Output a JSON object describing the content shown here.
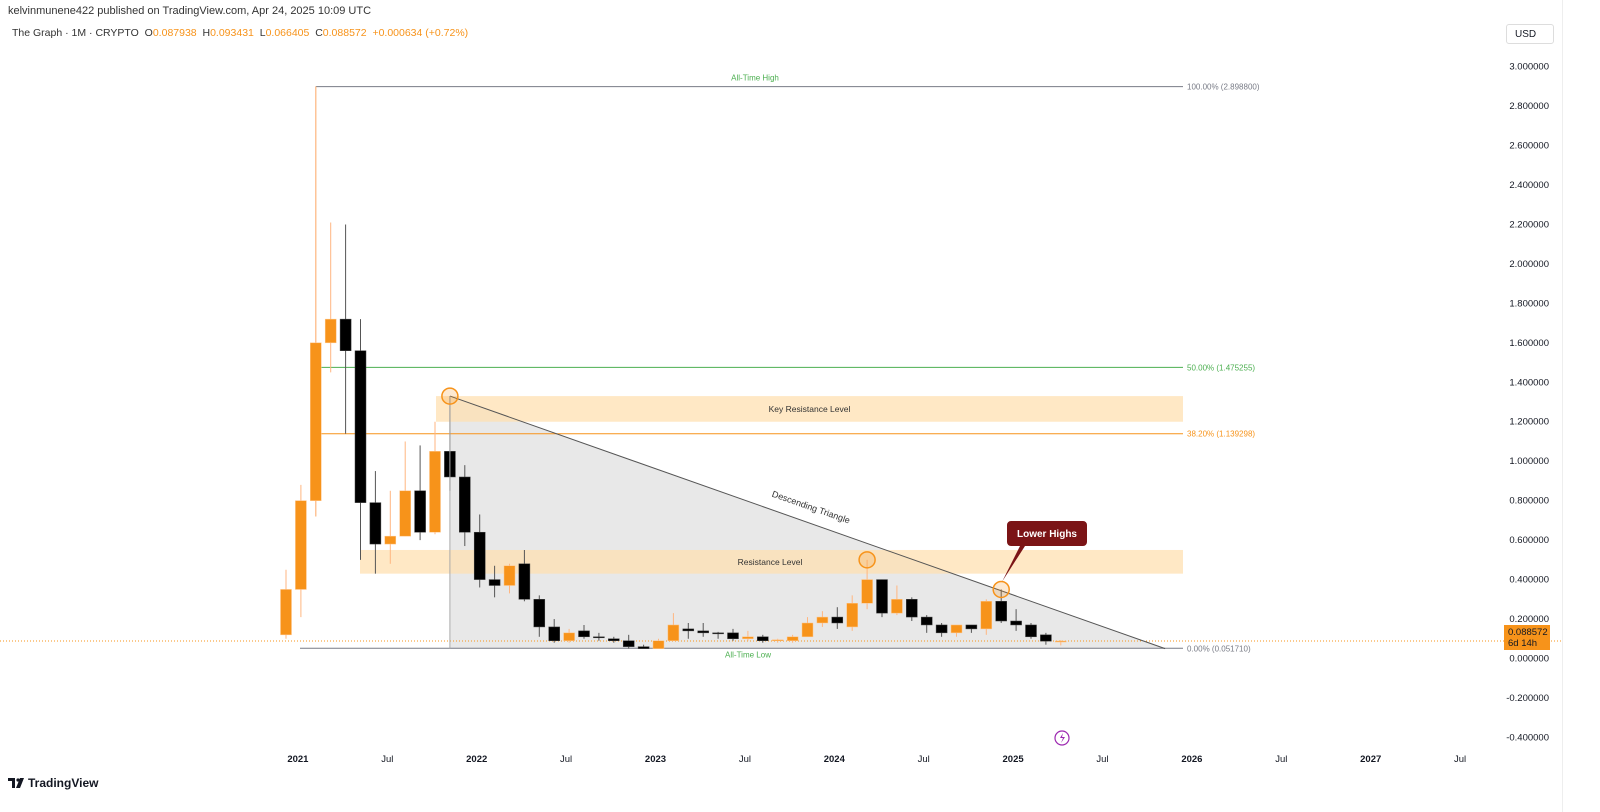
{
  "header": {
    "published": "kelvinmunene422 published on TradingView.com, Apr 24, 2025 10:09 UTC",
    "symbol": "The Graph · 1M · CRYPTO",
    "open_label": "O",
    "open": "0.087938",
    "high_label": "H",
    "high": "0.093431",
    "low_label": "L",
    "low": "0.066405",
    "close_label": "C",
    "close": "0.088572",
    "change": "+0.000634 (+0.72%)",
    "currency": "USD"
  },
  "price_tag": {
    "price": "0.088572",
    "countdown": "6d 14h"
  },
  "footer": {
    "logo": "TradingView"
  },
  "colors": {
    "up": "#f7931a",
    "down": "#000000",
    "fib_green": "#4caf50",
    "fib_orange": "#f7931a",
    "zone": "#ffe0b2",
    "callout": "#7b1416",
    "triangle": "#e6e6e6"
  },
  "chart_data": {
    "type": "candlestick",
    "interval": "1M",
    "ylim": [
      -0.45,
      3.1
    ],
    "yticks": [
      "3.000000",
      "2.800000",
      "2.600000",
      "2.400000",
      "2.200000",
      "2.000000",
      "1.800000",
      "1.600000",
      "1.400000",
      "1.200000",
      "1.000000",
      "0.800000",
      "0.600000",
      "0.400000",
      "0.200000",
      "0.000000",
      "-0.200000",
      "-0.400000"
    ],
    "ytick_values": [
      3.0,
      2.8,
      2.6,
      2.4,
      2.2,
      2.0,
      1.8,
      1.6,
      1.4,
      1.2,
      1.0,
      0.8,
      0.6,
      0.4,
      0.2,
      0.0,
      -0.2,
      -0.4
    ],
    "xticks": [
      {
        "label": "2021",
        "month": "2021-01"
      },
      {
        "label": "Jul",
        "month": "2021-07"
      },
      {
        "label": "2022",
        "month": "2022-01"
      },
      {
        "label": "Jul",
        "month": "2022-07"
      },
      {
        "label": "2023",
        "month": "2023-01"
      },
      {
        "label": "Jul",
        "month": "2023-07"
      },
      {
        "label": "2024",
        "month": "2024-01"
      },
      {
        "label": "Jul",
        "month": "2024-07"
      },
      {
        "label": "2025",
        "month": "2025-01"
      },
      {
        "label": "Jul",
        "month": "2025-07"
      },
      {
        "label": "2026",
        "month": "2026-01"
      },
      {
        "label": "Jul",
        "month": "2026-07"
      },
      {
        "label": "2027",
        "month": "2027-01"
      },
      {
        "label": "Jul",
        "month": "2027-07"
      }
    ],
    "candles": [
      {
        "t": "2020-12",
        "o": 0.12,
        "h": 0.45,
        "l": 0.1,
        "c": 0.35
      },
      {
        "t": "2021-01",
        "o": 0.35,
        "h": 0.88,
        "l": 0.21,
        "c": 0.8
      },
      {
        "t": "2021-02",
        "o": 0.8,
        "h": 2.9,
        "l": 0.72,
        "c": 1.6
      },
      {
        "t": "2021-03",
        "o": 1.6,
        "h": 2.21,
        "l": 1.45,
        "c": 1.72
      },
      {
        "t": "2021-04",
        "o": 1.72,
        "h": 2.2,
        "l": 1.14,
        "c": 1.56
      },
      {
        "t": "2021-05",
        "o": 1.56,
        "h": 1.72,
        "l": 0.5,
        "c": 0.79
      },
      {
        "t": "2021-06",
        "o": 0.79,
        "h": 0.95,
        "l": 0.43,
        "c": 0.58
      },
      {
        "t": "2021-07",
        "o": 0.58,
        "h": 0.85,
        "l": 0.48,
        "c": 0.62
      },
      {
        "t": "2021-08",
        "o": 0.62,
        "h": 1.1,
        "l": 0.62,
        "c": 0.85
      },
      {
        "t": "2021-09",
        "o": 0.85,
        "h": 1.08,
        "l": 0.6,
        "c": 0.64
      },
      {
        "t": "2021-10",
        "o": 0.64,
        "h": 1.2,
        "l": 0.63,
        "c": 1.05
      },
      {
        "t": "2021-11",
        "o": 1.05,
        "h": 1.33,
        "l": 0.85,
        "c": 0.92
      },
      {
        "t": "2021-12",
        "o": 0.92,
        "h": 0.98,
        "l": 0.57,
        "c": 0.64
      },
      {
        "t": "2022-01",
        "o": 0.64,
        "h": 0.73,
        "l": 0.36,
        "c": 0.4
      },
      {
        "t": "2022-02",
        "o": 0.4,
        "h": 0.47,
        "l": 0.31,
        "c": 0.37
      },
      {
        "t": "2022-03",
        "o": 0.37,
        "h": 0.48,
        "l": 0.33,
        "c": 0.47
      },
      {
        "t": "2022-04",
        "o": 0.48,
        "h": 0.55,
        "l": 0.29,
        "c": 0.3
      },
      {
        "t": "2022-05",
        "o": 0.3,
        "h": 0.32,
        "l": 0.11,
        "c": 0.16
      },
      {
        "t": "2022-06",
        "o": 0.16,
        "h": 0.2,
        "l": 0.08,
        "c": 0.09
      },
      {
        "t": "2022-07",
        "o": 0.09,
        "h": 0.15,
        "l": 0.08,
        "c": 0.13
      },
      {
        "t": "2022-08",
        "o": 0.14,
        "h": 0.17,
        "l": 0.1,
        "c": 0.11
      },
      {
        "t": "2022-09",
        "o": 0.11,
        "h": 0.13,
        "l": 0.09,
        "c": 0.105
      },
      {
        "t": "2022-10",
        "o": 0.1,
        "h": 0.11,
        "l": 0.08,
        "c": 0.09
      },
      {
        "t": "2022-11",
        "o": 0.09,
        "h": 0.12,
        "l": 0.05,
        "c": 0.06
      },
      {
        "t": "2022-12",
        "o": 0.06,
        "h": 0.07,
        "l": 0.052,
        "c": 0.05
      },
      {
        "t": "2023-01",
        "o": 0.05,
        "h": 0.1,
        "l": 0.05,
        "c": 0.09
      },
      {
        "t": "2023-02",
        "o": 0.09,
        "h": 0.23,
        "l": 0.09,
        "c": 0.17
      },
      {
        "t": "2023-03",
        "o": 0.15,
        "h": 0.18,
        "l": 0.1,
        "c": 0.14
      },
      {
        "t": "2023-04",
        "o": 0.14,
        "h": 0.18,
        "l": 0.11,
        "c": 0.13
      },
      {
        "t": "2023-05",
        "o": 0.13,
        "h": 0.135,
        "l": 0.1,
        "c": 0.125
      },
      {
        "t": "2023-06",
        "o": 0.13,
        "h": 0.15,
        "l": 0.09,
        "c": 0.1
      },
      {
        "t": "2023-07",
        "o": 0.1,
        "h": 0.14,
        "l": 0.09,
        "c": 0.11
      },
      {
        "t": "2023-08",
        "o": 0.11,
        "h": 0.12,
        "l": 0.08,
        "c": 0.09
      },
      {
        "t": "2023-09",
        "o": 0.09,
        "h": 0.1,
        "l": 0.08,
        "c": 0.095
      },
      {
        "t": "2023-10",
        "o": 0.09,
        "h": 0.12,
        "l": 0.08,
        "c": 0.11
      },
      {
        "t": "2023-11",
        "o": 0.11,
        "h": 0.21,
        "l": 0.11,
        "c": 0.18
      },
      {
        "t": "2023-12",
        "o": 0.18,
        "h": 0.24,
        "l": 0.16,
        "c": 0.21
      },
      {
        "t": "2024-01",
        "o": 0.21,
        "h": 0.26,
        "l": 0.15,
        "c": 0.18
      },
      {
        "t": "2024-02",
        "o": 0.16,
        "h": 0.32,
        "l": 0.14,
        "c": 0.28
      },
      {
        "t": "2024-03",
        "o": 0.28,
        "h": 0.5,
        "l": 0.25,
        "c": 0.4
      },
      {
        "t": "2024-04",
        "o": 0.4,
        "h": 0.4,
        "l": 0.21,
        "c": 0.23
      },
      {
        "t": "2024-05",
        "o": 0.23,
        "h": 0.37,
        "l": 0.22,
        "c": 0.3
      },
      {
        "t": "2024-06",
        "o": 0.3,
        "h": 0.31,
        "l": 0.19,
        "c": 0.21
      },
      {
        "t": "2024-07",
        "o": 0.21,
        "h": 0.22,
        "l": 0.13,
        "c": 0.17
      },
      {
        "t": "2024-08",
        "o": 0.17,
        "h": 0.18,
        "l": 0.11,
        "c": 0.13
      },
      {
        "t": "2024-09",
        "o": 0.13,
        "h": 0.17,
        "l": 0.11,
        "c": 0.17
      },
      {
        "t": "2024-10",
        "o": 0.17,
        "h": 0.17,
        "l": 0.13,
        "c": 0.15
      },
      {
        "t": "2024-11",
        "o": 0.15,
        "h": 0.3,
        "l": 0.12,
        "c": 0.29
      },
      {
        "t": "2024-12",
        "o": 0.29,
        "h": 0.35,
        "l": 0.18,
        "c": 0.19
      },
      {
        "t": "2025-01",
        "o": 0.19,
        "h": 0.25,
        "l": 0.14,
        "c": 0.17
      },
      {
        "t": "2025-02",
        "o": 0.17,
        "h": 0.18,
        "l": 0.1,
        "c": 0.11
      },
      {
        "t": "2025-03",
        "o": 0.12,
        "h": 0.13,
        "l": 0.07,
        "c": 0.088
      },
      {
        "t": "2025-04",
        "o": 0.087938,
        "h": 0.093431,
        "l": 0.066405,
        "c": 0.088572
      }
    ],
    "fib_levels": [
      {
        "label": "100.00% (2.898800)",
        "value": 2.8988,
        "color": "#787b86"
      },
      {
        "label": "50.00% (1.475255)",
        "value": 1.475255,
        "color": "#4caf50"
      },
      {
        "label": "38.20% (1.139298)",
        "value": 1.139298,
        "color": "#f7931a"
      },
      {
        "label": "0.00% (0.051710)",
        "value": 0.05171,
        "color": "#787b86"
      }
    ],
    "annotations": {
      "ath": "All-Time High",
      "atl": "All-Time Low",
      "key_resistance": {
        "label": "Key Resistance Level",
        "from": 1.2,
        "to": 1.33
      },
      "resistance": {
        "label": "Resistance Level",
        "from": 0.43,
        "to": 0.55
      },
      "triangle": {
        "label": "Descending Triangle",
        "start": "2021-11",
        "start_value": 1.33,
        "end": "2025-11",
        "end_value": 0.05
      },
      "callout": "Lower Highs",
      "circled_highs": [
        {
          "t": "2021-11",
          "v": 1.33
        },
        {
          "t": "2024-03",
          "v": 0.5
        },
        {
          "t": "2024-12",
          "v": 0.35
        }
      ]
    }
  }
}
